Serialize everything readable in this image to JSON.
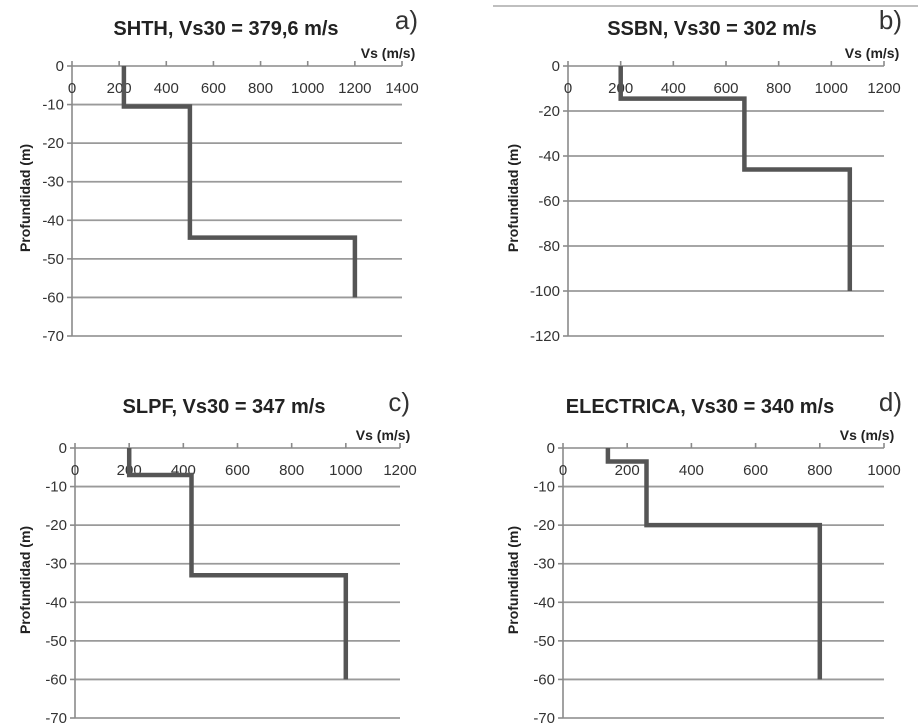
{
  "figure": {
    "line_color": "#555555",
    "panels_letters": [
      "a)",
      "b)",
      "c)",
      "d)"
    ]
  },
  "chart_data": [
    {
      "type": "line",
      "panel": "a)",
      "title": "SHTH, Vs30 = 379,6 m/s",
      "xlabel": "Vs (m/s)",
      "ylabel": "Profundidad (m)",
      "xlim": [
        0,
        1400
      ],
      "xticks": [
        0,
        200,
        400,
        600,
        800,
        1000,
        1200,
        1400
      ],
      "ylim": [
        -70,
        0
      ],
      "yticks": [
        0,
        -10,
        -20,
        -30,
        -40,
        -50,
        -60,
        -70
      ],
      "grid": true,
      "series": [
        {
          "x": [
            220,
            220,
            500,
            500,
            1200,
            1200
          ],
          "y": [
            0,
            -10.5,
            -10.5,
            -44.5,
            -44.5,
            -60
          ]
        }
      ]
    },
    {
      "type": "line",
      "panel": "b)",
      "title": "SSBN, Vs30 = 302 m/s",
      "xlabel": "Vs (m/s)",
      "ylabel": "Profundidad (m)",
      "xlim": [
        0,
        1200
      ],
      "xticks": [
        0,
        200,
        400,
        600,
        800,
        1000,
        1200
      ],
      "ylim": [
        -120,
        0
      ],
      "yticks": [
        0,
        -20,
        -40,
        -60,
        -80,
        -100,
        -120
      ],
      "grid": true,
      "series": [
        {
          "x": [
            200,
            200,
            670,
            670,
            1070,
            1070
          ],
          "y": [
            0,
            -14.5,
            -14.5,
            -46,
            -46,
            -100
          ]
        }
      ]
    },
    {
      "type": "line",
      "panel": "c)",
      "title": "SLPF, Vs30 = 347 m/s",
      "xlabel": "Vs (m/s)",
      "ylabel": "Profundidad (m)",
      "xlim": [
        0,
        1200
      ],
      "xticks": [
        0,
        200,
        400,
        600,
        800,
        1000,
        1200
      ],
      "ylim": [
        -70,
        0
      ],
      "yticks": [
        0,
        -10,
        -20,
        -30,
        -40,
        -50,
        -60,
        -70
      ],
      "grid": true,
      "series": [
        {
          "x": [
            200,
            200,
            430,
            430,
            1000,
            1000
          ],
          "y": [
            0,
            -7,
            -7,
            -33,
            -33,
            -60
          ]
        }
      ]
    },
    {
      "type": "line",
      "panel": "d)",
      "title": "ELECTRICA, Vs30 = 340 m/s",
      "xlabel": "Vs (m/s)",
      "ylabel": "Profundidad (m)",
      "xlim": [
        0,
        1000
      ],
      "xticks": [
        0,
        200,
        400,
        600,
        800,
        1000
      ],
      "ylim": [
        -70,
        0
      ],
      "yticks": [
        0,
        -10,
        -20,
        -30,
        -40,
        -50,
        -60,
        -70
      ],
      "grid": true,
      "series": [
        {
          "x": [
            140,
            140,
            260,
            260,
            800,
            800
          ],
          "y": [
            0,
            -3.5,
            -3.5,
            -20,
            -20,
            -60
          ]
        }
      ]
    }
  ]
}
